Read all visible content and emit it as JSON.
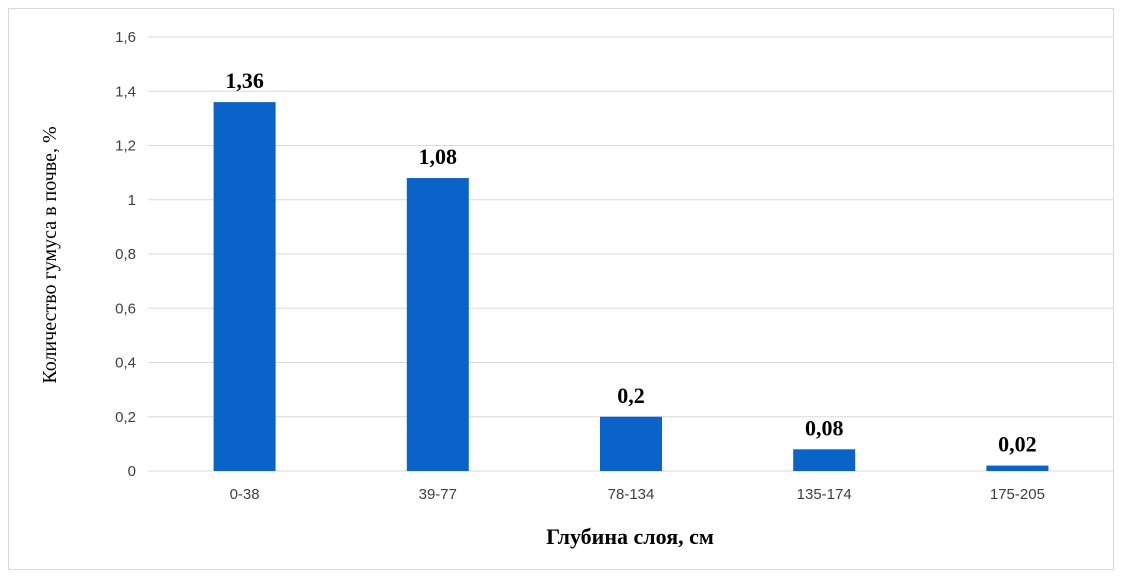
{
  "chart_data": {
    "type": "bar",
    "categories": [
      "0-38",
      "39-77",
      "78-134",
      "135-174",
      "175-205"
    ],
    "values": [
      1.36,
      1.08,
      0.2,
      0.08,
      0.02
    ],
    "data_labels": [
      "1,36",
      "1,08",
      "0,2",
      "0,08",
      "0,02"
    ],
    "title": "",
    "xlabel": "Глубина слоя, см",
    "ylabel": "Количество гумуса в почве, %",
    "ylim": [
      0,
      1.6
    ],
    "yticks": [
      0,
      0.2,
      0.4,
      0.6,
      0.8,
      1,
      1.2,
      1.4,
      1.6
    ],
    "ytick_labels": [
      "0",
      "0,2",
      "0,4",
      "0,6",
      "0,8",
      "1",
      "1,2",
      "1,4",
      "1,6"
    ],
    "grid": true,
    "legend": "none",
    "bar_color": "#0a63c9"
  }
}
